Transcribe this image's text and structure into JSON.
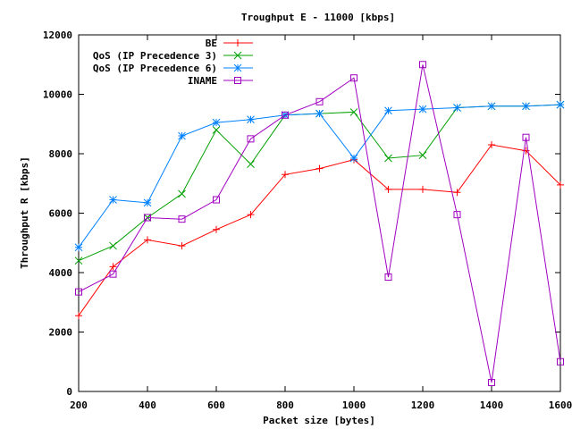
{
  "chart_data": {
    "type": "line",
    "title": "Troughput E - 11000 [kbps]",
    "xlabel": "Packet size [bytes]",
    "ylabel": "Throughput R [kbps]",
    "xlim": [
      200,
      1600
    ],
    "ylim": [
      0,
      12000
    ],
    "x_ticks": [
      200,
      400,
      600,
      800,
      1000,
      1200,
      1400,
      1600
    ],
    "y_ticks": [
      0,
      2000,
      4000,
      6000,
      8000,
      10000,
      12000
    ],
    "grid": false,
    "legend_position": "top-left",
    "x": [
      200,
      300,
      400,
      500,
      600,
      700,
      800,
      900,
      1000,
      1100,
      1200,
      1300,
      1400,
      1500,
      1600
    ],
    "series": [
      {
        "name": "BE",
        "color": "#ff0000",
        "marker": "plus",
        "values": [
          2550,
          4200,
          5100,
          4900,
          5450,
          5950,
          7300,
          7500,
          7800,
          6800,
          6800,
          6700,
          8300,
          8100,
          6950
        ]
      },
      {
        "name": "QoS (IP Precedence 3)",
        "color": "#00a000",
        "marker": "cross",
        "values": [
          4400,
          4900,
          5850,
          6650,
          8800,
          7650,
          9300,
          9350,
          9400,
          7850,
          7950,
          9550,
          9600,
          9600,
          9650
        ]
      },
      {
        "name": "QoS (IP Precedence 6)",
        "color": "#0080ff",
        "marker": "star",
        "values": [
          4850,
          6450,
          6350,
          8600,
          9050,
          9150,
          9300,
          9350,
          7850,
          9450,
          9500,
          9550,
          9600,
          9600,
          9650
        ]
      },
      {
        "name": "INAME",
        "color": "#a000c0",
        "marker": "square",
        "values": [
          3350,
          3950,
          5850,
          5800,
          6450,
          8500,
          9300,
          9750,
          10550,
          3850,
          11000,
          5950,
          300,
          8550,
          1000
        ]
      }
    ]
  }
}
